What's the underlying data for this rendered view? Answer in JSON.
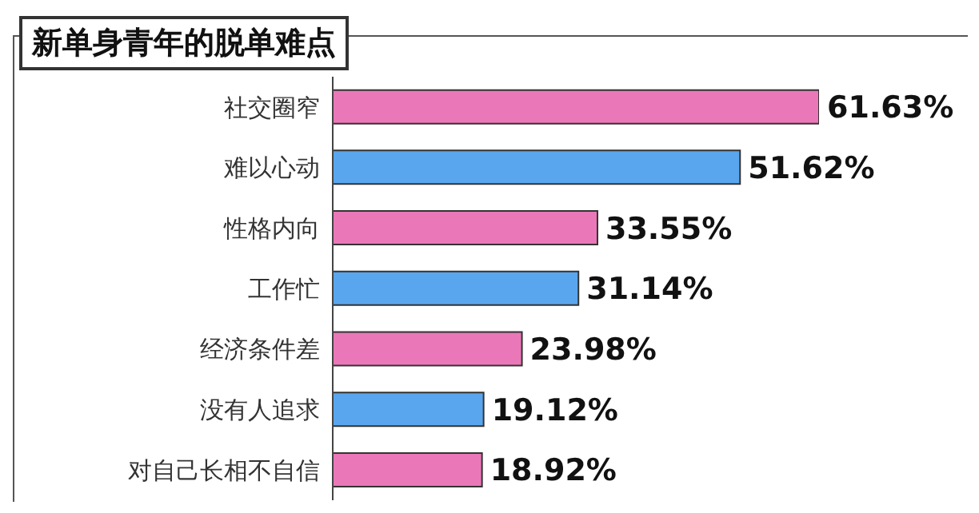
{
  "chart_data": {
    "type": "bar",
    "orientation": "horizontal",
    "tick_labels": "y",
    "title": "新单身青年的脱单难点",
    "categories": [
      "社交圈窄",
      "难以心动",
      "性格内向",
      "工作忙",
      "经济条件差",
      "没有人追求",
      "对自己长相不自信"
    ],
    "values": [
      61.63,
      51.62,
      33.55,
      31.14,
      23.98,
      19.12,
      18.92
    ],
    "value_labels": [
      "61.63%",
      "51.62%",
      "33.55%",
      "31.14%",
      "23.98%",
      "19.12%",
      "18.92%"
    ],
    "colors": [
      "#ea78b8",
      "#5aa6ee",
      "#ea78b8",
      "#5aa6ee",
      "#ea78b8",
      "#5aa6ee",
      "#ea78b8"
    ]
  }
}
